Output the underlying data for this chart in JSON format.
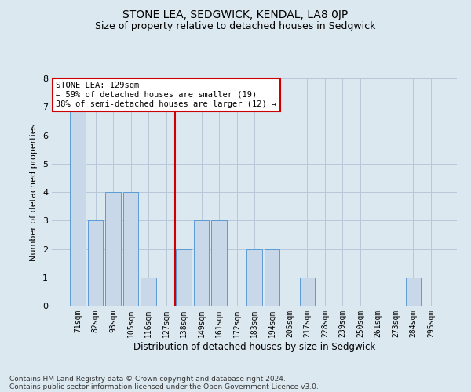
{
  "title": "STONE LEA, SEDGWICK, KENDAL, LA8 0JP",
  "subtitle": "Size of property relative to detached houses in Sedgwick",
  "xlabel": "Distribution of detached houses by size in Sedgwick",
  "ylabel": "Number of detached properties",
  "categories": [
    "71sqm",
    "82sqm",
    "93sqm",
    "105sqm",
    "116sqm",
    "127sqm",
    "138sqm",
    "149sqm",
    "161sqm",
    "172sqm",
    "183sqm",
    "194sqm",
    "205sqm",
    "217sqm",
    "228sqm",
    "239sqm",
    "250sqm",
    "261sqm",
    "273sqm",
    "284sqm",
    "295sqm"
  ],
  "values": [
    7,
    3,
    4,
    4,
    1,
    0,
    2,
    3,
    3,
    0,
    2,
    2,
    0,
    1,
    0,
    0,
    0,
    0,
    0,
    1,
    0
  ],
  "bar_color": "#c8d8e8",
  "bar_edge_color": "#5b9bd5",
  "red_line_index": 5,
  "ylim": [
    0,
    8
  ],
  "yticks": [
    0,
    1,
    2,
    3,
    4,
    5,
    6,
    7,
    8
  ],
  "annotation_line1": "STONE LEA: 129sqm",
  "annotation_line2": "← 59% of detached houses are smaller (19)",
  "annotation_line3": "38% of semi-detached houses are larger (12) →",
  "annotation_box_color": "#ffffff",
  "annotation_box_edge": "#cc0000",
  "footer_line1": "Contains HM Land Registry data © Crown copyright and database right 2024.",
  "footer_line2": "Contains public sector information licensed under the Open Government Licence v3.0.",
  "grid_color": "#b8c8d8",
  "background_color": "#dce8f0",
  "title_fontsize": 10,
  "subtitle_fontsize": 9
}
